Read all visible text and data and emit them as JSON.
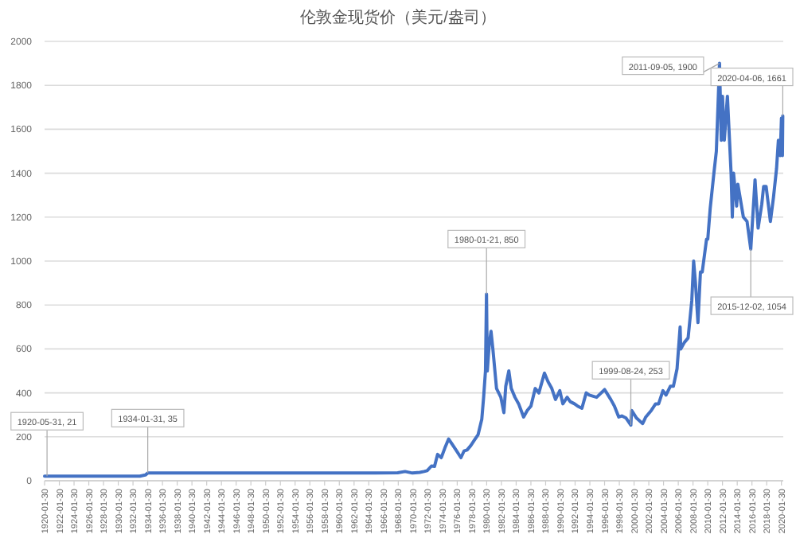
{
  "chart_data": {
    "type": "line",
    "title": "伦敦金现货价（美元/盎司）",
    "x": [
      "1920-01-30",
      "1920-05-31",
      "1925-01",
      "1930-01",
      "1933-01",
      "1933-10",
      "1934-01-31",
      "1940-01",
      "1945-01",
      "1950-01",
      "1955-01",
      "1960-01",
      "1965-01",
      "1968-01",
      "1969-01",
      "1970-01",
      "1971-01",
      "1971-08",
      "1972-01",
      "1972-08",
      "1973-01",
      "1973-06",
      "1973-12",
      "1974-06",
      "1974-12",
      "1975-06",
      "1975-12",
      "1976-08",
      "1977-01",
      "1977-06",
      "1977-12",
      "1978-06",
      "1978-12",
      "1979-06",
      "1979-09",
      "1979-12",
      "1980-01-21",
      "1980-03",
      "1980-06",
      "1980-09",
      "1980-12",
      "1981-06",
      "1982-01",
      "1982-06",
      "1982-09",
      "1983-02",
      "1983-06",
      "1983-12",
      "1984-06",
      "1985-02",
      "1985-08",
      "1986-02",
      "1986-09",
      "1987-03",
      "1987-12",
      "1988-06",
      "1988-12",
      "1989-06",
      "1990-01",
      "1990-06",
      "1991-01",
      "1991-06",
      "1992-01",
      "1992-06",
      "1993-01",
      "1993-08",
      "1994-01",
      "1995-01",
      "1996-02",
      "1996-12",
      "1997-06",
      "1998-01",
      "1998-06",
      "1999-01",
      "1999-08-24",
      "1999-10",
      "2000-06",
      "2001-04",
      "2001-09",
      "2002-06",
      "2003-01",
      "2003-06",
      "2004-01",
      "2004-06",
      "2005-01",
      "2005-06",
      "2005-12",
      "2006-05",
      "2006-06",
      "2006-12",
      "2007-06",
      "2007-12",
      "2008-03",
      "2008-06",
      "2008-10",
      "2009-02",
      "2009-05",
      "2009-12",
      "2010-02",
      "2010-06",
      "2010-12",
      "2011-04",
      "2011-09-05",
      "2011-12",
      "2012-02",
      "2012-05",
      "2012-10",
      "2013-04",
      "2013-06",
      "2013-08",
      "2014-01",
      "2014-03",
      "2014-06",
      "2014-12",
      "2015-06",
      "2015-12-02",
      "2016-07",
      "2016-12",
      "2017-06",
      "2017-09",
      "2018-01",
      "2018-08",
      "2019-01",
      "2019-06",
      "2019-09",
      "2019-12",
      "2020-02",
      "2020-03-19",
      "2020-04-06"
    ],
    "series": [
      {
        "color": "#4472c4",
        "values": [
          21,
          21,
          21,
          21,
          21,
          26,
          35,
          35,
          35,
          35,
          35,
          35,
          35,
          36,
          42,
          35,
          38,
          42,
          46,
          67,
          65,
          120,
          105,
          150,
          190,
          165,
          140,
          105,
          135,
          140,
          160,
          185,
          210,
          280,
          380,
          500,
          850,
          500,
          620,
          680,
          600,
          420,
          380,
          310,
          430,
          500,
          420,
          380,
          350,
          290,
          320,
          340,
          420,
          400,
          490,
          450,
          420,
          370,
          410,
          350,
          380,
          360,
          350,
          340,
          330,
          400,
          390,
          380,
          415,
          370,
          340,
          290,
          295,
          285,
          253,
          320,
          285,
          260,
          290,
          320,
          350,
          350,
          410,
          390,
          430,
          430,
          510,
          700,
          600,
          630,
          650,
          820,
          1000,
          900,
          720,
          950,
          950,
          1100,
          1100,
          1240,
          1400,
          1500,
          1900,
          1550,
          1750,
          1550,
          1750,
          1400,
          1200,
          1400,
          1250,
          1350,
          1300,
          1200,
          1180,
          1054,
          1370,
          1150,
          1260,
          1340,
          1340,
          1180,
          1290,
          1420,
          1550,
          1480,
          1650,
          1480,
          1661
        ]
      }
    ],
    "annotations": [
      {
        "text": "1920-05-31, 21",
        "x": "1920-05-31",
        "y": 21
      },
      {
        "text": "1934-01-31, 35",
        "x": "1934-01-31",
        "y": 35
      },
      {
        "text": "1980-01-21, 850",
        "x": "1980-01-21",
        "y": 850
      },
      {
        "text": "1999-08-24, 253",
        "x": "1999-08-24",
        "y": 253
      },
      {
        "text": "2011-09-05, 1900",
        "x": "2011-09-05",
        "y": 1900
      },
      {
        "text": "2015-12-02, 1054",
        "x": "2015-12-02",
        "y": 1054
      },
      {
        "text": "2020-04-06, 1661",
        "x": "2020-04-06",
        "y": 1661
      }
    ],
    "xlim": [
      "1920-01-30",
      "2020-04-30"
    ],
    "xticks": [
      "1920-01-30",
      "1922-01-30",
      "1924-01-30",
      "1926-01-30",
      "1928-01-30",
      "1930-01-30",
      "1932-01-30",
      "1934-01-30",
      "1936-01-30",
      "1938-01-30",
      "1940-01-30",
      "1942-01-30",
      "1944-01-30",
      "1946-01-30",
      "1948-01-30",
      "1950-01-30",
      "1952-01-30",
      "1954-01-30",
      "1956-01-30",
      "1958-01-30",
      "1960-01-30",
      "1962-01-30",
      "1964-01-30",
      "1966-01-30",
      "1968-01-30",
      "1970-01-30",
      "1972-01-30",
      "1974-01-30",
      "1976-01-30",
      "1978-01-30",
      "1980-01-30",
      "1982-01-30",
      "1984-01-30",
      "1986-01-30",
      "1988-01-30",
      "1990-01-30",
      "1992-01-30",
      "1994-01-30",
      "1996-01-30",
      "1998-01-30",
      "2000-01-30",
      "2002-01-30",
      "2004-01-30",
      "2006-01-30",
      "2008-01-30",
      "2010-01-30",
      "2012-01-30",
      "2014-01-30",
      "2016-01-30",
      "2018-01-30",
      "2020-01-30"
    ],
    "ylim": [
      0,
      2000
    ],
    "yticks": [
      0,
      200,
      400,
      600,
      800,
      1000,
      1200,
      1400,
      1600,
      1800,
      2000
    ],
    "grid": "y",
    "marker": "none",
    "line_style": "solid"
  }
}
